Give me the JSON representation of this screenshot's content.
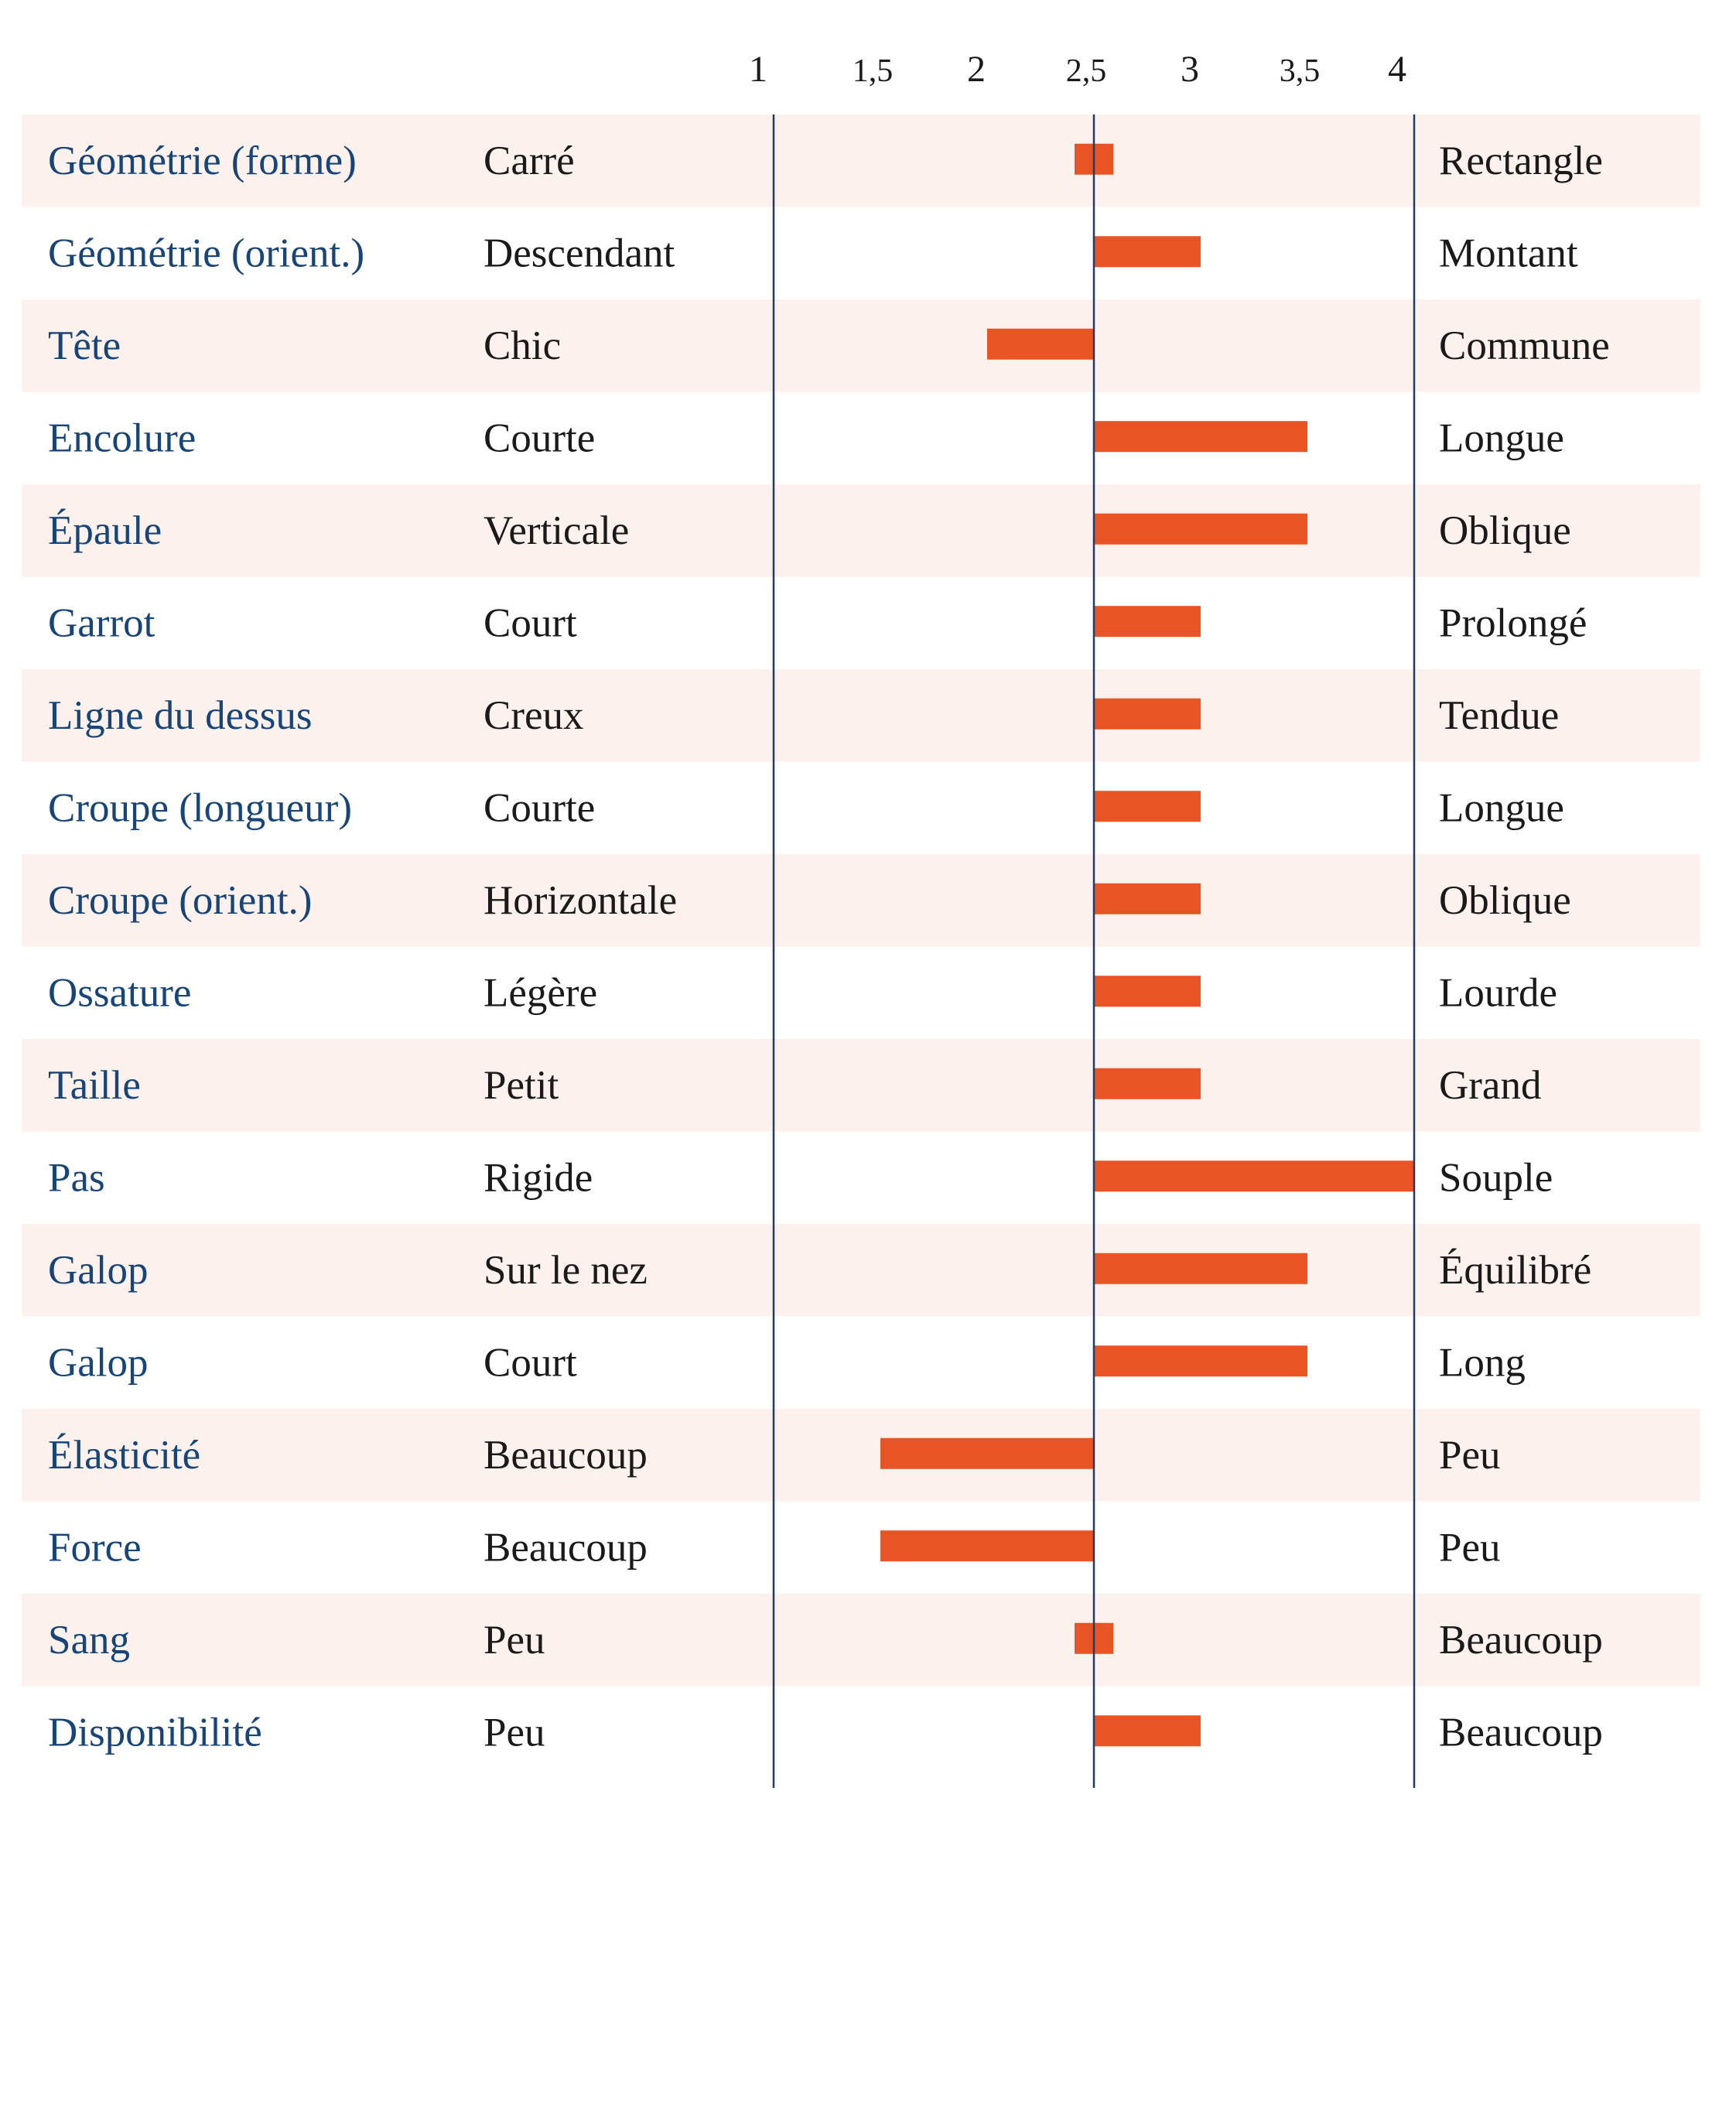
{
  "chart_data": {
    "type": "bar",
    "orientation": "horizontal",
    "baseline": 2.5,
    "xlim": [
      1,
      4
    ],
    "x_ticks": [
      "1",
      "1,5",
      "2",
      "2,5",
      "3",
      "3,5",
      "4"
    ],
    "x_tick_values": [
      1,
      1.5,
      2,
      2.5,
      3,
      3.5,
      4
    ],
    "rows": [
      {
        "trait": "Géométrie (forme)",
        "left": "Carré",
        "right": "Rectangle",
        "value": 2.5,
        "marker": true
      },
      {
        "trait": "Géométrie (orient.)",
        "left": "Descendant",
        "right": "Montant",
        "value": 3
      },
      {
        "trait": "Tête",
        "left": "Chic",
        "right": "Commune",
        "value": 2
      },
      {
        "trait": "Encolure",
        "left": "Courte",
        "right": "Longue",
        "value": 3.5
      },
      {
        "trait": "Épaule",
        "left": "Verticale",
        "right": "Oblique",
        "value": 3.5
      },
      {
        "trait": "Garrot",
        "left": "Court",
        "right": "Prolongé",
        "value": 3
      },
      {
        "trait": "Ligne du dessus",
        "left": "Creux",
        "right": "Tendue",
        "value": 3
      },
      {
        "trait": "Croupe (longueur)",
        "left": "Courte",
        "right": "Longue",
        "value": 3
      },
      {
        "trait": "Croupe (orient.)",
        "left": "Horizontale",
        "right": "Oblique",
        "value": 3
      },
      {
        "trait": "Ossature",
        "left": "Légère",
        "right": "Lourde",
        "value": 3
      },
      {
        "trait": "Taille",
        "left": "Petit",
        "right": "Grand",
        "value": 3
      },
      {
        "trait": "Pas",
        "left": "Rigide",
        "right": "Souple",
        "value": 4
      },
      {
        "trait": "Galop",
        "left": "Sur le nez",
        "right": "Équilibré",
        "value": 3.5
      },
      {
        "trait": "Galop",
        "left": "Court",
        "right": "Long",
        "value": 3.5
      },
      {
        "trait": "Élasticité",
        "left": "Beaucoup",
        "right": "Peu",
        "value": 1.5
      },
      {
        "trait": "Force",
        "left": "Beaucoup",
        "right": "Peu",
        "value": 1.5
      },
      {
        "trait": "Sang",
        "left": "Peu",
        "right": "Beaucoup",
        "value": 2.5,
        "marker": true
      },
      {
        "trait": "Disponibilité",
        "left": "Peu",
        "right": "Beaucoup",
        "value": 3
      }
    ]
  },
  "colors": {
    "bar": "#e85424",
    "stripe": "#fdf1ed",
    "axis_line": "#1f3a6b",
    "trait_text": "#17457a",
    "pole_text": "#1a1a1a"
  }
}
